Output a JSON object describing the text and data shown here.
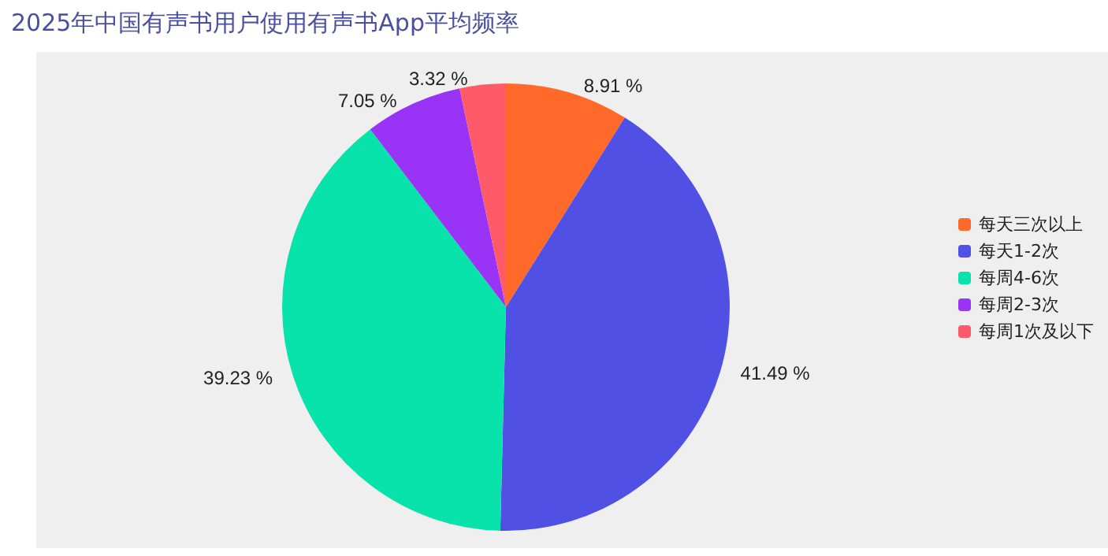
{
  "chart_data": {
    "type": "pie",
    "title": "2025年中国有声书用户使用有声书App平均频率",
    "categories": [
      "每天三次以上",
      "每天1-2次",
      "每周4-6次",
      "每周2-3次",
      "每周1次及以下"
    ],
    "values": [
      8.91,
      41.49,
      39.23,
      7.05,
      3.32
    ],
    "colors": [
      "#ff6a2a",
      "#5050e5",
      "#08e3ab",
      "#9933f5",
      "#ff5a6a"
    ],
    "value_labels": [
      "8.91 %",
      "41.49 %",
      "39.23 %",
      "7.05 %",
      "3.32 %"
    ],
    "legend": "right"
  }
}
